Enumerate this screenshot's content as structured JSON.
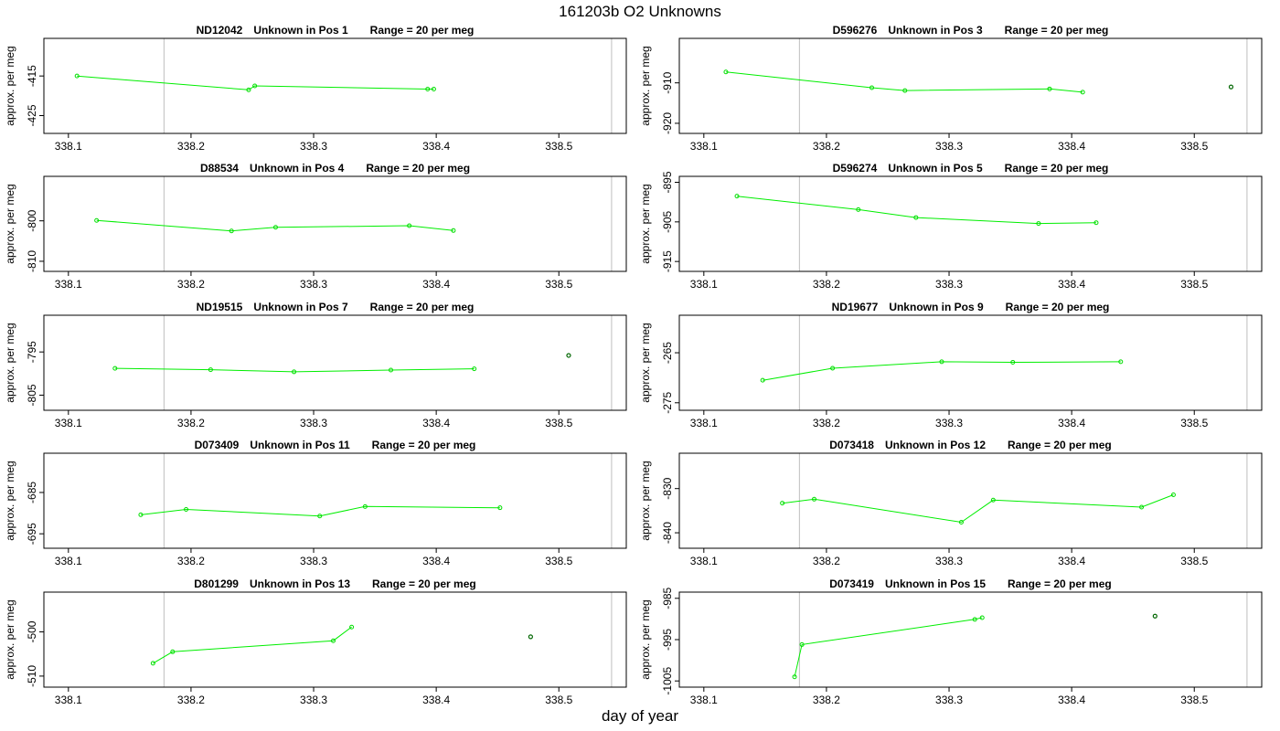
{
  "title": "161203b  O2 Unknowns",
  "xlabel": "day of year",
  "chart_data": [
    {
      "type": "line",
      "id": "ND12042",
      "pos_label": "Unknown in Pos 1",
      "range_label": "Range = 20 per meg",
      "ylabel": "approx. per meg",
      "xlim": [
        338.08,
        338.555
      ],
      "ylim": [
        -429.5,
        -405.5
      ],
      "xticks": [
        "338.1",
        "338.2",
        "338.3",
        "338.4",
        "338.5"
      ],
      "yticks": [
        "-415",
        "-425"
      ],
      "ytick_values": [
        -415,
        -425
      ],
      "vlines": [
        338.178,
        338.543
      ],
      "x": [
        338.107,
        338.247,
        338.252,
        338.393,
        338.398
      ],
      "y": [
        -415,
        -418.5,
        -417.5,
        -418.3,
        -418.3
      ],
      "extra_points": []
    },
    {
      "type": "line",
      "id": "D596276",
      "pos_label": "Unknown in Pos 3",
      "range_label": "Range = 20 per meg",
      "ylabel": "approx. per meg",
      "xlim": [
        338.08,
        338.555
      ],
      "ylim": [
        -922.5,
        -899
      ],
      "xticks": [
        "338.1",
        "338.2",
        "338.3",
        "338.4",
        "338.5"
      ],
      "yticks": [
        "-910",
        "-920"
      ],
      "ytick_values": [
        -910,
        -920
      ],
      "vlines": [
        338.178,
        338.543
      ],
      "x": [
        338.118,
        338.237,
        338.264,
        338.382,
        338.409
      ],
      "y": [
        -907.3,
        -911.2,
        -911.9,
        -911.5,
        -912.3
      ],
      "extra_points": [
        {
          "x": 338.53,
          "y": -911
        }
      ]
    },
    {
      "type": "line",
      "id": "D88534",
      "pos_label": "Unknown in Pos 4",
      "range_label": "Range = 20 per meg",
      "ylabel": "approx. per meg",
      "xlim": [
        338.08,
        338.555
      ],
      "ylim": [
        -812.5,
        -789
      ],
      "xticks": [
        "338.1",
        "338.2",
        "338.3",
        "338.4",
        "338.5"
      ],
      "yticks": [
        "-800",
        "-810"
      ],
      "ytick_values": [
        -800,
        -810
      ],
      "vlines": [
        338.178,
        338.543
      ],
      "x": [
        338.123,
        338.233,
        338.269,
        338.378,
        338.414
      ],
      "y": [
        -799.9,
        -802.5,
        -801.6,
        -801.2,
        -802.4
      ],
      "extra_points": []
    },
    {
      "type": "line",
      "id": "D596274",
      "pos_label": "Unknown in Pos 5",
      "range_label": "Range = 20 per meg",
      "ylabel": "approx. per meg",
      "xlim": [
        338.08,
        338.555
      ],
      "ylim": [
        -917.5,
        -893.5
      ],
      "xticks": [
        "338.1",
        "338.2",
        "338.3",
        "338.4",
        "338.5"
      ],
      "yticks": [
        "-895",
        "-905",
        "-915"
      ],
      "ytick_values": [
        -895,
        -905,
        -915
      ],
      "vlines": [
        338.178,
        338.543
      ],
      "x": [
        338.127,
        338.226,
        338.273,
        338.373,
        338.42
      ],
      "y": [
        -898.5,
        -901.9,
        -903.9,
        -905.4,
        -905.2
      ],
      "extra_points": []
    },
    {
      "type": "line",
      "id": "ND19515",
      "pos_label": "Unknown in Pos 7",
      "range_label": "Range = 20 per meg",
      "ylabel": "approx. per meg",
      "xlim": [
        338.08,
        338.555
      ],
      "ylim": [
        -808.5,
        -786.5
      ],
      "xticks": [
        "338.1",
        "338.2",
        "338.3",
        "338.4",
        "338.5"
      ],
      "yticks": [
        "-795",
        "-805"
      ],
      "ytick_values": [
        -795,
        -805
      ],
      "vlines": [
        338.178,
        338.543
      ],
      "x": [
        338.138,
        338.216,
        338.284,
        338.363,
        338.431
      ],
      "y": [
        -798.8,
        -799.1,
        -799.6,
        -799.2,
        -798.9
      ],
      "extra_points": [
        {
          "x": 338.508,
          "y": -795.8
        }
      ]
    },
    {
      "type": "line",
      "id": "ND19677",
      "pos_label": "Unknown in Pos 9",
      "range_label": "Range = 20 per meg",
      "ylabel": "approx. per meg",
      "xlim": [
        338.08,
        338.555
      ],
      "ylim": [
        -276.5,
        -257.5
      ],
      "xticks": [
        "338.1",
        "338.2",
        "338.3",
        "338.4",
        "338.5"
      ],
      "yticks": [
        "-265",
        "-275"
      ],
      "ytick_values": [
        -265,
        -275
      ],
      "vlines": [
        338.178,
        338.543
      ],
      "x": [
        338.148,
        338.205,
        338.294,
        338.352,
        338.44
      ],
      "y": [
        -270.5,
        -268.1,
        -266.8,
        -266.9,
        -266.8
      ],
      "extra_points": []
    },
    {
      "type": "line",
      "id": "D073409",
      "pos_label": "Unknown in Pos 11",
      "range_label": "Range = 20 per meg",
      "ylabel": "approx. per meg",
      "xlim": [
        338.08,
        338.555
      ],
      "ylim": [
        -698.5,
        -675.5
      ],
      "xticks": [
        "338.1",
        "338.2",
        "338.3",
        "338.4",
        "338.5"
      ],
      "yticks": [
        "-685",
        "-695"
      ],
      "ytick_values": [
        -685,
        -695
      ],
      "vlines": [
        338.178,
        338.543
      ],
      "x": [
        338.159,
        338.196,
        338.305,
        338.342,
        338.452
      ],
      "y": [
        -690.4,
        -689.1,
        -690.7,
        -688.4,
        -688.7
      ],
      "extra_points": []
    },
    {
      "type": "line",
      "id": "D073418",
      "pos_label": "Unknown in Pos 12",
      "range_label": "Range = 20 per meg",
      "ylabel": "approx. per meg",
      "xlim": [
        338.08,
        338.555
      ],
      "ylim": [
        -843.5,
        -822
      ],
      "xticks": [
        "338.1",
        "338.2",
        "338.3",
        "338.4",
        "338.5"
      ],
      "yticks": [
        "-830",
        "-840"
      ],
      "ytick_values": [
        -830,
        -840
      ],
      "vlines": [
        338.178,
        338.543
      ],
      "x": [
        338.164,
        338.19,
        338.31,
        338.336,
        338.457,
        338.483
      ],
      "y": [
        -833.3,
        -832.4,
        -837.6,
        -832.6,
        -834.2,
        -831.4
      ],
      "extra_points": []
    },
    {
      "type": "line",
      "id": "D801299",
      "pos_label": "Unknown in Pos 13",
      "range_label": "Range = 20 per meg",
      "ylabel": "approx. per meg",
      "xlim": [
        338.08,
        338.555
      ],
      "ylim": [
        -512.5,
        -491
      ],
      "xticks": [
        "338.1",
        "338.2",
        "338.3",
        "338.4",
        "338.5"
      ],
      "yticks": [
        "-500",
        "-510"
      ],
      "ytick_values": [
        -500,
        -510
      ],
      "vlines": [
        338.178,
        338.543
      ],
      "x": [
        338.169,
        338.185,
        338.316,
        338.331
      ],
      "y": [
        -507.1,
        -504.5,
        -502,
        -498.9
      ],
      "extra_points": [
        {
          "x": 338.477,
          "y": -501.1
        }
      ]
    },
    {
      "type": "line",
      "id": "D073419",
      "pos_label": "Unknown in Pos 15",
      "range_label": "Range = 20 per meg",
      "ylabel": "approx. per meg",
      "xlim": [
        338.08,
        338.555
      ],
      "ylim": [
        -1006.5,
        -983.5
      ],
      "xticks": [
        "338.1",
        "338.2",
        "338.3",
        "338.4",
        "338.5"
      ],
      "yticks": [
        "-985",
        "-995",
        "-1005"
      ],
      "ytick_values": [
        -985,
        -995,
        -1005
      ],
      "vlines": [
        338.178,
        338.543
      ],
      "x": [
        338.174,
        338.18,
        338.321,
        338.327
      ],
      "y": [
        -1004,
        -996.2,
        -990.1,
        -989.7
      ],
      "extra_points": [
        {
          "x": 338.468,
          "y": -989.3
        }
      ]
    }
  ]
}
